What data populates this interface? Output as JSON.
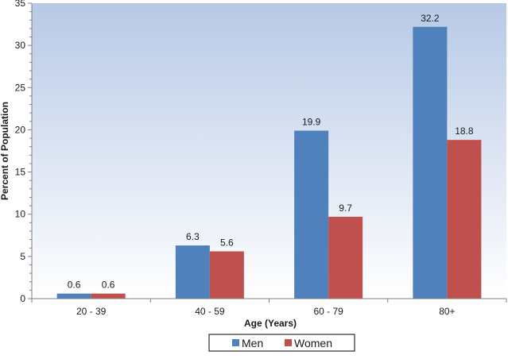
{
  "chart_data": {
    "type": "bar",
    "categories": [
      "20 - 39",
      "40 - 59",
      "60 - 79",
      "80+"
    ],
    "series": [
      {
        "name": "Men",
        "values": [
          0.6,
          6.3,
          19.9,
          32.2
        ],
        "color": "#4f81bd"
      },
      {
        "name": "Women",
        "values": [
          0.6,
          5.6,
          9.7,
          18.8
        ],
        "color": "#c0504d"
      }
    ],
    "data_labels": [
      [
        "0.6",
        "6.3",
        "19.9",
        "32.2"
      ],
      [
        "0.6",
        "5.6",
        "9.7",
        "18.8"
      ]
    ],
    "xlabel": "Age (Years)",
    "ylabel": "Percent of Population",
    "ylim": [
      0,
      35
    ],
    "yticks": [
      0,
      5,
      10,
      15,
      20,
      25,
      30,
      35
    ],
    "ytick_labels": [
      "0",
      "5",
      "10",
      "15",
      "20",
      "25",
      "30",
      "35"
    ],
    "grid": false,
    "legend_position": "bottom",
    "background": "gradient light blue"
  }
}
